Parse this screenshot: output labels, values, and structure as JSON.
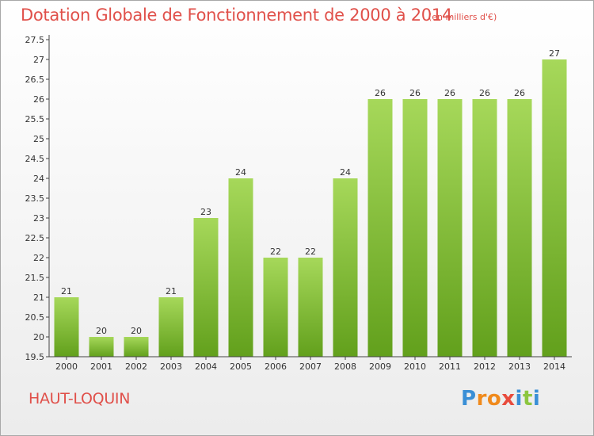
{
  "chart_data": {
    "type": "bar",
    "title": "Dotation Globale de Fonctionnement de 2000 à 2014",
    "subtitle": "(en milliers d'€)",
    "xlabel": "",
    "ylabel": "",
    "categories": [
      "2000",
      "2001",
      "2002",
      "2003",
      "2004",
      "2005",
      "2006",
      "2007",
      "2008",
      "2009",
      "2010",
      "2011",
      "2012",
      "2013",
      "2014"
    ],
    "values": [
      21,
      20,
      20,
      21,
      23,
      24,
      22,
      22,
      24,
      26,
      26,
      26,
      26,
      26,
      27
    ],
    "value_labels": [
      "21",
      "20",
      "20",
      "21",
      "23",
      "24",
      "22",
      "22",
      "24",
      "26",
      "26",
      "26",
      "26",
      "26",
      "27"
    ],
    "ylim": [
      19.5,
      27.5
    ],
    "yticks": [
      "19.5",
      "20",
      "20.5",
      "21",
      "21.5",
      "22",
      "22.5",
      "23",
      "23.5",
      "24",
      "24.5",
      "25",
      "25.5",
      "26",
      "26.5",
      "27",
      "27.5"
    ],
    "grid": false,
    "legend": "none"
  },
  "footer": {
    "commune": "HAUT-LOQUIN",
    "logo": [
      "P",
      "r",
      "o",
      "x",
      "i",
      "t",
      "i"
    ],
    "logo_colors": [
      "#3a8fd6",
      "#f08a1c",
      "#f08a1c",
      "#e84b3c",
      "#3a8fd6",
      "#8cc63f",
      "#3a8fd6"
    ]
  },
  "colors": {
    "bar_light": "#a6d85a",
    "bar_dark": "#62a01c",
    "title": "#e0504a",
    "axis": "#333333"
  }
}
